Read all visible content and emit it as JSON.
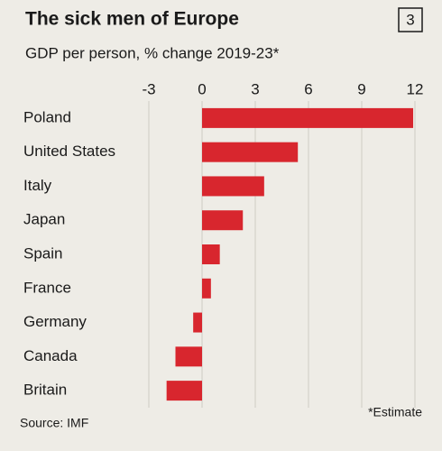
{
  "chart_data": {
    "type": "bar",
    "orientation": "horizontal",
    "title": "The sick men of Europe",
    "page_number": "3",
    "subtitle": "GDP per person, % change 2019-23*",
    "categories": [
      "Poland",
      "United States",
      "Italy",
      "Japan",
      "Spain",
      "France",
      "Germany",
      "Canada",
      "Britain"
    ],
    "values": [
      11.9,
      5.4,
      3.5,
      2.3,
      1.0,
      0.5,
      -0.5,
      -1.5,
      -2.0
    ],
    "color": "#d8262e",
    "xlim": [
      -3,
      12
    ],
    "xticks": [
      -3,
      0,
      3,
      6,
      9,
      12
    ],
    "grid": true,
    "source": "Source: IMF",
    "note": "*Estimate"
  }
}
